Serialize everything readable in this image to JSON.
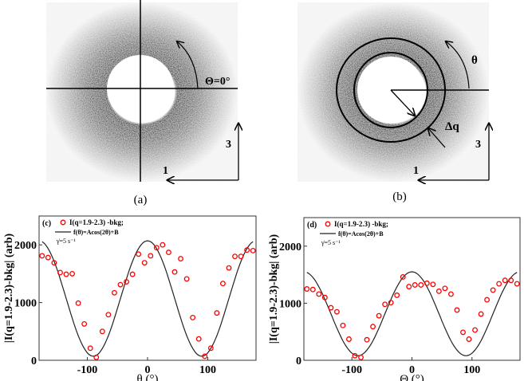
{
  "panels": {
    "a": {
      "label": "(a)",
      "angle_label": "Θ=0°",
      "axis3": "3",
      "axis1": "1"
    },
    "b": {
      "label": "(b)",
      "angle_label": "θ",
      "dq_label": "Δq",
      "axis3": "3",
      "axis1": "1"
    }
  },
  "chart_data": [
    {
      "type": "scatter",
      "panel": "(c)",
      "xlabel": "θ (°)",
      "ylabel": "|I(q=1.9-2.3)-bkg| (arb)",
      "xlim": [
        -180,
        180
      ],
      "ylim": [
        0,
        2500
      ],
      "xticks": [
        "-100",
        "0",
        "100"
      ],
      "xtick_values": [
        -100,
        0,
        100
      ],
      "yticks": [
        "0",
        "1000",
        "2000"
      ],
      "ytick_values": [
        0,
        1000,
        2000
      ],
      "legend": {
        "data": "I(q=1.9-2.3) -bkg;",
        "fit": "f(θ)=Acos(2θ)+B",
        "note": "γ̇=5 s⁻¹",
        "placement": "top-left"
      },
      "marker_color": "#ff0000",
      "x": [
        -175,
        -165,
        -155,
        -145,
        -135,
        -125,
        -115,
        -105,
        -95,
        -85,
        -75,
        -65,
        -55,
        -45,
        -35,
        -25,
        -15,
        -5,
        5,
        15,
        25,
        35,
        45,
        55,
        65,
        75,
        85,
        95,
        105,
        115,
        125,
        135,
        145,
        155,
        165,
        175
      ],
      "y": [
        1810,
        1780,
        1690,
        1520,
        1490,
        1500,
        990,
        630,
        210,
        50,
        500,
        790,
        1170,
        1310,
        1360,
        1490,
        1840,
        1690,
        1810,
        1950,
        2000,
        1870,
        1530,
        1760,
        1410,
        740,
        370,
        70,
        210,
        820,
        1330,
        1600,
        1800,
        1800,
        1910,
        1900
      ],
      "fit": {
        "A": 1000,
        "B": 1070
      }
    },
    {
      "type": "scatter",
      "panel": "(d)",
      "xlabel": "Θ (°)",
      "ylabel": "|I(q=1.9-2.3)-bkg| (arb)",
      "xlim": [
        -180,
        180
      ],
      "ylim": [
        0,
        2500
      ],
      "xticks": [
        "-100",
        "0",
        "100"
      ],
      "xtick_values": [
        -100,
        0,
        100
      ],
      "yticks": [
        "0",
        "1000",
        "2000"
      ],
      "ytick_values": [
        0,
        1000,
        2000
      ],
      "legend": {
        "data": "I(q=1.9-2.3) -bkg;",
        "fit": "f(θ)=Acos(2θ)+B",
        "note": "γ̇=5 s⁻¹",
        "placement": "top-left"
      },
      "marker_color": "#ff0000",
      "x": [
        -175,
        -165,
        -155,
        -145,
        -135,
        -125,
        -115,
        -105,
        -95,
        -85,
        -75,
        -65,
        -55,
        -45,
        -35,
        -25,
        -15,
        -5,
        5,
        15,
        25,
        35,
        45,
        55,
        65,
        75,
        85,
        95,
        105,
        115,
        125,
        135,
        145,
        155,
        165,
        175
      ],
      "y": [
        1250,
        1240,
        1160,
        1100,
        920,
        850,
        610,
        370,
        80,
        50,
        360,
        590,
        780,
        980,
        1010,
        1140,
        1460,
        1290,
        1320,
        1320,
        1350,
        1330,
        1210,
        1260,
        1160,
        880,
        490,
        370,
        530,
        810,
        1060,
        1230,
        1340,
        1400,
        1400,
        1340
      ],
      "fit": {
        "A": 735,
        "B": 815
      }
    }
  ]
}
